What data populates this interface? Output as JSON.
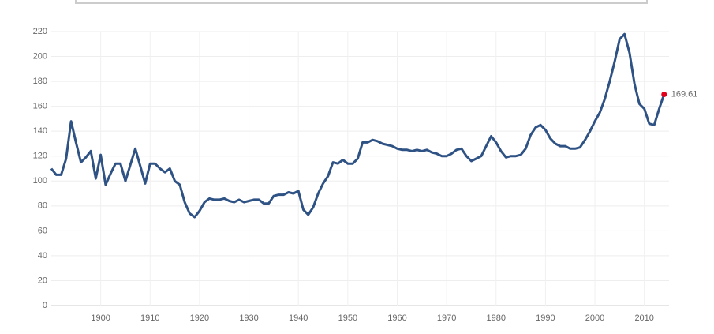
{
  "chart_data": {
    "type": "line",
    "color": "#2f5285",
    "end_color": "#e3001b",
    "grid": true,
    "xlim": [
      1890,
      2015
    ],
    "ylim": [
      0,
      220
    ],
    "xticks": [
      1900,
      1910,
      1920,
      1930,
      1940,
      1950,
      1960,
      1970,
      1980,
      1990,
      2000,
      2010
    ],
    "yticks": [
      0,
      20,
      40,
      60,
      80,
      100,
      120,
      140,
      160,
      180,
      200,
      220
    ],
    "x": [
      1890,
      1891,
      1892,
      1893,
      1894,
      1895,
      1896,
      1897,
      1898,
      1899,
      1900,
      1901,
      1902,
      1903,
      1904,
      1905,
      1906,
      1907,
      1908,
      1909,
      1910,
      1911,
      1912,
      1913,
      1914,
      1915,
      1916,
      1917,
      1918,
      1919,
      1920,
      1921,
      1922,
      1923,
      1924,
      1925,
      1926,
      1927,
      1928,
      1929,
      1930,
      1931,
      1932,
      1933,
      1934,
      1935,
      1936,
      1937,
      1938,
      1939,
      1940,
      1941,
      1942,
      1943,
      1944,
      1945,
      1946,
      1947,
      1948,
      1949,
      1950,
      1951,
      1952,
      1953,
      1954,
      1955,
      1956,
      1957,
      1958,
      1959,
      1960,
      1961,
      1962,
      1963,
      1964,
      1965,
      1966,
      1967,
      1968,
      1969,
      1970,
      1971,
      1972,
      1973,
      1974,
      1975,
      1976,
      1977,
      1978,
      1979,
      1980,
      1981,
      1982,
      1983,
      1984,
      1985,
      1986,
      1987,
      1988,
      1989,
      1990,
      1991,
      1992,
      1993,
      1994,
      1995,
      1996,
      1997,
      1998,
      1999,
      2000,
      2001,
      2002,
      2003,
      2004,
      2005,
      2006,
      2007,
      2008,
      2009,
      2010,
      2011,
      2012,
      2013,
      2014
    ],
    "values": [
      110,
      105,
      105,
      118,
      148,
      131,
      115,
      119,
      124,
      102,
      121,
      97,
      106,
      114,
      114,
      100,
      113,
      126,
      112,
      98,
      114,
      114,
      110,
      107,
      110,
      100,
      97,
      83,
      74,
      71,
      76,
      83,
      86,
      85,
      85,
      86,
      84,
      83,
      85,
      83,
      84,
      85,
      85,
      82,
      82,
      88,
      89,
      89,
      91,
      90,
      92,
      77,
      73,
      79,
      90,
      98,
      104,
      115,
      114,
      117,
      114,
      114,
      118,
      131,
      131,
      133,
      132,
      130,
      129,
      128,
      126,
      125,
      125,
      124,
      125,
      124,
      125,
      123,
      122,
      120,
      120,
      122,
      125,
      126,
      120,
      116,
      118,
      120,
      128,
      136,
      131,
      124,
      119,
      120,
      120,
      121,
      126,
      137,
      143,
      145,
      141,
      134,
      130,
      128,
      128,
      126,
      126,
      127,
      133,
      140,
      148,
      155,
      166,
      180,
      196,
      214,
      218,
      203,
      178,
      162,
      158,
      146,
      145,
      158,
      169.61
    ]
  }
}
